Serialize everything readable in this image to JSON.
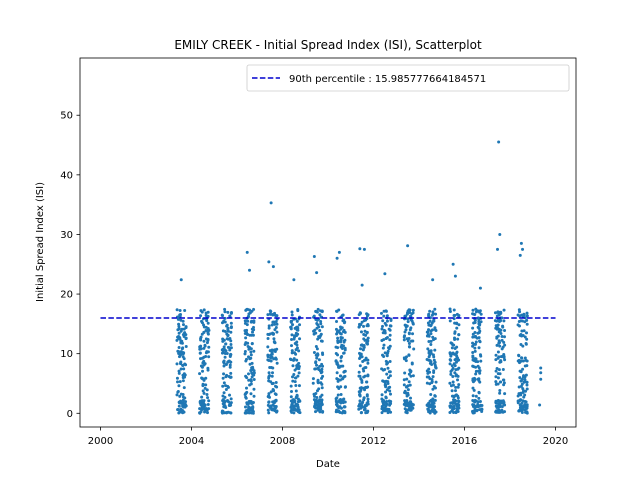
{
  "chart_data": {
    "type": "scatter",
    "title": "EMILY CREEK - Initial Spread Index (ISI), Scatterplot",
    "xlabel": "Date",
    "ylabel": "Initial Spread Index (ISI)",
    "xlim": [
      1999.1,
      2020.9
    ],
    "ylim": [
      -2.3,
      59.6
    ],
    "xticks": [
      2000,
      2004,
      2008,
      2012,
      2016,
      2020
    ],
    "xtick_labels": [
      "2000",
      "2004",
      "2008",
      "2012",
      "2016",
      "2020"
    ],
    "yticks": [
      0,
      10,
      20,
      30,
      40,
      50
    ],
    "ytick_labels": [
      "0",
      "10",
      "20",
      "30",
      "40",
      "50"
    ],
    "grid": false,
    "legend_position": "top-right",
    "colors": {
      "points": "#1f77b4",
      "threshold": "#0000cd"
    },
    "threshold": {
      "label": "90th percentile : 15.985777664184571",
      "value": 15.985777664184571,
      "x_range": [
        2000,
        2020
      ]
    },
    "season_starts": [
      2003.35,
      2004.35,
      2005.35,
      2006.35,
      2007.35,
      2008.35,
      2009.35,
      2010.35,
      2011.35,
      2012.35,
      2013.35,
      2014.35,
      2015.35,
      2016.35,
      2017.35,
      2018.35
    ],
    "season_end_offset": 0.42,
    "points_per_season": 120,
    "outliers": [
      {
        "x": 2003.55,
        "y": 22.4
      },
      {
        "x": 2006.45,
        "y": 27.0
      },
      {
        "x": 2006.55,
        "y": 24.0
      },
      {
        "x": 2007.5,
        "y": 35.3
      },
      {
        "x": 2007.4,
        "y": 25.4
      },
      {
        "x": 2007.6,
        "y": 24.6
      },
      {
        "x": 2008.5,
        "y": 22.4
      },
      {
        "x": 2009.4,
        "y": 26.3
      },
      {
        "x": 2009.5,
        "y": 23.6
      },
      {
        "x": 2010.5,
        "y": 27.0
      },
      {
        "x": 2010.4,
        "y": 26.0
      },
      {
        "x": 2011.4,
        "y": 27.6
      },
      {
        "x": 2011.6,
        "y": 27.5
      },
      {
        "x": 2011.5,
        "y": 21.5
      },
      {
        "x": 2012.5,
        "y": 23.4
      },
      {
        "x": 2013.5,
        "y": 28.1
      },
      {
        "x": 2014.6,
        "y": 22.4
      },
      {
        "x": 2015.5,
        "y": 25.0
      },
      {
        "x": 2015.6,
        "y": 23.0
      },
      {
        "x": 2016.7,
        "y": 21.0
      },
      {
        "x": 2017.5,
        "y": 45.5
      },
      {
        "x": 2017.55,
        "y": 30.0
      },
      {
        "x": 2017.45,
        "y": 27.5
      },
      {
        "x": 2018.5,
        "y": 28.5
      },
      {
        "x": 2018.55,
        "y": 27.5
      },
      {
        "x": 2018.45,
        "y": 26.5
      },
      {
        "x": 2019.35,
        "y": 7.6
      },
      {
        "x": 2019.35,
        "y": 6.8
      },
      {
        "x": 2019.35,
        "y": 5.7
      },
      {
        "x": 2019.3,
        "y": 1.4
      }
    ]
  }
}
